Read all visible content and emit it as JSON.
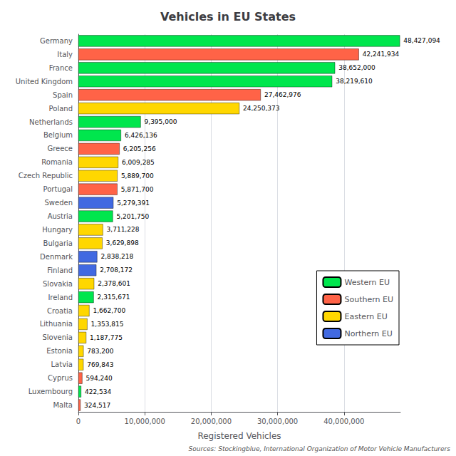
{
  "chart_data": {
    "type": "bar",
    "orientation": "horizontal",
    "title": "Vehicles in EU States",
    "xlabel": "Registered Vehicles",
    "annotations": [
      "Sources: Stockingblue, International Organization of Motor Vehicle Manufacturers"
    ],
    "categories": [
      "Germany",
      "Italy",
      "France",
      "United Kingdom",
      "Spain",
      "Poland",
      "Netherlands",
      "Belgium",
      "Greece",
      "Romania",
      "Czech Republic",
      "Portugal",
      "Sweden",
      "Austria",
      "Hungary",
      "Bulgaria",
      "Denmark",
      "Finland",
      "Slovakia",
      "Ireland",
      "Croatia",
      "Lithuania",
      "Slovenia",
      "Estonia",
      "Latvia",
      "Cyprus",
      "Luxembourg",
      "Malta"
    ],
    "series": [
      {
        "name": "Western EU",
        "color": "#00e64d",
        "values": [
          48427094,
          null,
          38652000,
          38219610,
          null,
          null,
          9395000,
          6426136,
          null,
          null,
          null,
          null,
          null,
          5201750,
          null,
          null,
          null,
          null,
          null,
          2315671,
          null,
          null,
          null,
          null,
          null,
          null,
          422534,
          null
        ],
        "value_labels": [
          "48,427,094",
          null,
          "38,652,000",
          "38,219,610",
          null,
          null,
          "9,395,000",
          "6,426,136",
          null,
          null,
          null,
          null,
          null,
          "5,201,750",
          null,
          null,
          null,
          null,
          null,
          "2,315,671",
          null,
          null,
          null,
          null,
          null,
          null,
          "422,534",
          null
        ]
      },
      {
        "name": "Southern EU",
        "color": "#ff6347",
        "values": [
          null,
          42241934,
          null,
          null,
          27462976,
          null,
          null,
          null,
          6205256,
          null,
          null,
          5871700,
          null,
          null,
          null,
          null,
          null,
          null,
          null,
          null,
          null,
          null,
          null,
          null,
          null,
          594240,
          null,
          324517
        ],
        "value_labels": [
          null,
          "42,241,934",
          null,
          null,
          "27,462,976",
          null,
          null,
          null,
          "6,205,256",
          null,
          null,
          "5,871,700",
          null,
          null,
          null,
          null,
          null,
          null,
          null,
          null,
          null,
          null,
          null,
          null,
          null,
          "594,240",
          null,
          "324,517"
        ]
      },
      {
        "name": "Eastern EU",
        "color": "#ffd700",
        "values": [
          null,
          null,
          null,
          null,
          null,
          24250373,
          null,
          null,
          null,
          6009285,
          5889700,
          null,
          null,
          null,
          3711228,
          3629898,
          null,
          null,
          2378601,
          null,
          1662700,
          1353815,
          1187775,
          783200,
          769843,
          null,
          null,
          null
        ],
        "value_labels": [
          null,
          null,
          null,
          null,
          null,
          "24,250,373",
          null,
          null,
          null,
          "6,009,285",
          "5,889,700",
          null,
          null,
          null,
          "3,711,228",
          "3,629,898",
          null,
          null,
          "2,378,601",
          null,
          "1,662,700",
          "1,353,815",
          "1,187,775",
          "783,200",
          "769,843",
          null,
          null,
          null
        ]
      },
      {
        "name": "Northern EU",
        "color": "#4169e1",
        "values": [
          null,
          null,
          null,
          null,
          null,
          null,
          null,
          null,
          null,
          null,
          null,
          null,
          5279391,
          null,
          null,
          null,
          2838218,
          2708172,
          null,
          null,
          null,
          null,
          null,
          null,
          null,
          null,
          null,
          null
        ],
        "value_labels": [
          null,
          null,
          null,
          null,
          null,
          null,
          null,
          null,
          null,
          null,
          null,
          null,
          "5,279,391",
          null,
          null,
          null,
          "2,838,218",
          "2,708,172",
          null,
          null,
          null,
          null,
          null,
          null,
          null,
          null,
          null,
          null
        ]
      }
    ],
    "xlim": [
      0,
      48500000
    ],
    "xticks": [
      0,
      {
        "value": 10000000,
        "label": "10,000,000"
      },
      {
        "value": 20000000,
        "label": "20,000,000"
      },
      {
        "value": 30000000,
        "label": "30,000,000"
      },
      {
        "value": 40000000,
        "label": "40,000,000"
      }
    ],
    "grid": true,
    "data_labels": true,
    "legend": "right"
  }
}
